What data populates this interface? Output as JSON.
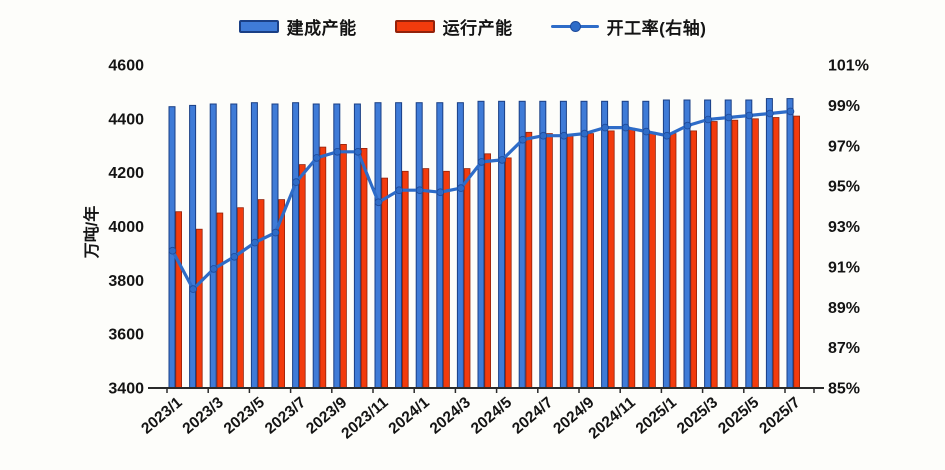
{
  "legend": {
    "built_label": "建成产能",
    "running_label": "运行产能",
    "rate_label": "开工率(右轴)"
  },
  "colors": {
    "built_fill": "#3f7bd7",
    "built_edge": "#1a3f85",
    "running_fill": "#f23b0d",
    "running_edge": "#93220a",
    "rate_line": "#2e6cc8",
    "axis": "#2a2a2a",
    "text": "#141414"
  },
  "y_axis_title": "万吨/年",
  "chart_data": {
    "type": "bar+line combo",
    "title": "",
    "xlabel": "",
    "ylabel_left": "万吨/年",
    "ylabel_right": "%",
    "grid": "off",
    "legend_position": "top-center",
    "y_left_range": [
      3400,
      4600
    ],
    "y_left_ticks": [
      "4600",
      "4400",
      "4200",
      "4000",
      "3800",
      "3600",
      "3400"
    ],
    "y_left_tick_values": [
      4600,
      4400,
      4200,
      4000,
      3800,
      3600,
      3400
    ],
    "y_right_range": [
      85,
      101
    ],
    "y_right_ticks": [
      "101%",
      "99%",
      "97%",
      "95%",
      "93%",
      "91%",
      "89%",
      "87%",
      "85%"
    ],
    "y_right_tick_values": [
      101,
      99,
      97,
      95,
      93,
      91,
      89,
      87,
      85
    ],
    "x_label_every": 2,
    "categories": [
      "2023/1",
      "2023/2",
      "2023/3",
      "2023/4",
      "2023/5",
      "2023/6",
      "2023/7",
      "2023/8",
      "2023/9",
      "2023/10",
      "2023/11",
      "2023/12",
      "2024/1",
      "2024/2",
      "2024/3",
      "2024/4",
      "2024/5",
      "2024/6",
      "2024/7",
      "2024/8",
      "2024/9",
      "2024/10",
      "2024/11",
      "2024/12",
      "2025/1",
      "2025/2",
      "2025/3",
      "2025/4",
      "2025/5",
      "2025/6",
      "2025/7"
    ],
    "series": [
      {
        "name": "建成产能",
        "type": "bar",
        "axis": "left",
        "unit": "万吨/年",
        "values": [
          4445,
          4450,
          4455,
          4455,
          4460,
          4455,
          4460,
          4455,
          4455,
          4455,
          4460,
          4460,
          4460,
          4460,
          4460,
          4465,
          4465,
          4465,
          4465,
          4465,
          4465,
          4465,
          4465,
          4465,
          4470,
          4470,
          4470,
          4470,
          4470,
          4475,
          4475
        ]
      },
      {
        "name": "运行产能",
        "type": "bar",
        "axis": "left",
        "unit": "万吨/年",
        "values": [
          4055,
          3990,
          4050,
          4070,
          4100,
          4100,
          4230,
          4295,
          4305,
          4290,
          4180,
          4205,
          4215,
          4205,
          4215,
          4270,
          4255,
          4350,
          4345,
          4340,
          4345,
          4355,
          4365,
          4350,
          4345,
          4355,
          4390,
          4395,
          4400,
          4405,
          4410
        ]
      },
      {
        "name": "开工率(右轴)",
        "type": "line",
        "axis": "right",
        "unit": "%",
        "values": [
          91.8,
          89.9,
          90.9,
          91.5,
          92.2,
          92.7,
          95.2,
          96.4,
          96.7,
          96.7,
          94.2,
          94.8,
          94.8,
          94.7,
          94.9,
          96.2,
          96.3,
          97.3,
          97.5,
          97.5,
          97.6,
          97.9,
          97.9,
          97.7,
          97.5,
          98.0,
          98.3,
          98.4,
          98.5,
          98.6,
          98.7
        ]
      }
    ]
  }
}
